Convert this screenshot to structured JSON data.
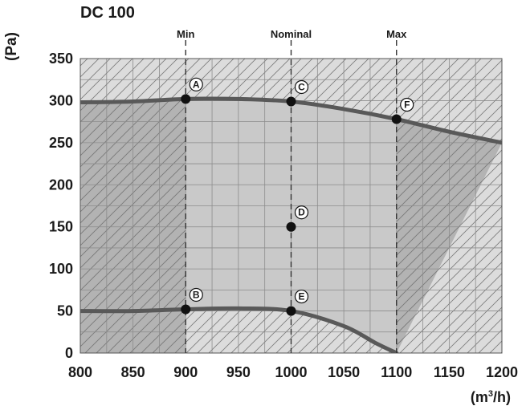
{
  "chart_data": {
    "type": "line",
    "title": "DC 100",
    "ylabel": "(Pa)",
    "xlabel_base": "(m",
    "xlabel_sup": "3",
    "xlabel_end": "/h)",
    "x_ticks": [
      800,
      850,
      900,
      950,
      1000,
      1050,
      1100,
      1150,
      1200
    ],
    "y_ticks": [
      0,
      50,
      100,
      150,
      200,
      250,
      300,
      350
    ],
    "xlim": [
      800,
      1200
    ],
    "ylim": [
      0,
      350
    ],
    "grid": true,
    "operating_lines": [
      {
        "label": "Min",
        "x": 900
      },
      {
        "label": "Nominal",
        "x": 1000
      },
      {
        "label": "Max",
        "x": 1100
      }
    ],
    "series": [
      {
        "x": [
          800,
          850,
          900,
          950,
          1000,
          1050,
          1100,
          1150,
          1200
        ],
        "values": [
          298,
          299,
          302,
          302,
          299,
          290,
          278,
          263,
          250
        ]
      },
      {
        "x": [
          800,
          850,
          900,
          950,
          1000,
          1050,
          1080,
          1100
        ],
        "values": [
          50,
          50,
          52,
          53,
          50,
          32,
          12,
          0
        ]
      }
    ],
    "points": [
      {
        "label": "A",
        "x": 900,
        "y": 302
      },
      {
        "label": "B",
        "x": 900,
        "y": 52
      },
      {
        "label": "C",
        "x": 1000,
        "y": 299
      },
      {
        "label": "D",
        "x": 1000,
        "y": 150
      },
      {
        "label": "E",
        "x": 1000,
        "y": 50
      },
      {
        "label": "F",
        "x": 1100,
        "y": 278
      }
    ],
    "colors": {
      "curve": "#595959",
      "shade_light": "#dcdcdc",
      "shade_mid": "#c9c9c9",
      "shade_dark": "#a6a6a6",
      "grid": "#8c8c8c",
      "point": "#111111"
    }
  }
}
